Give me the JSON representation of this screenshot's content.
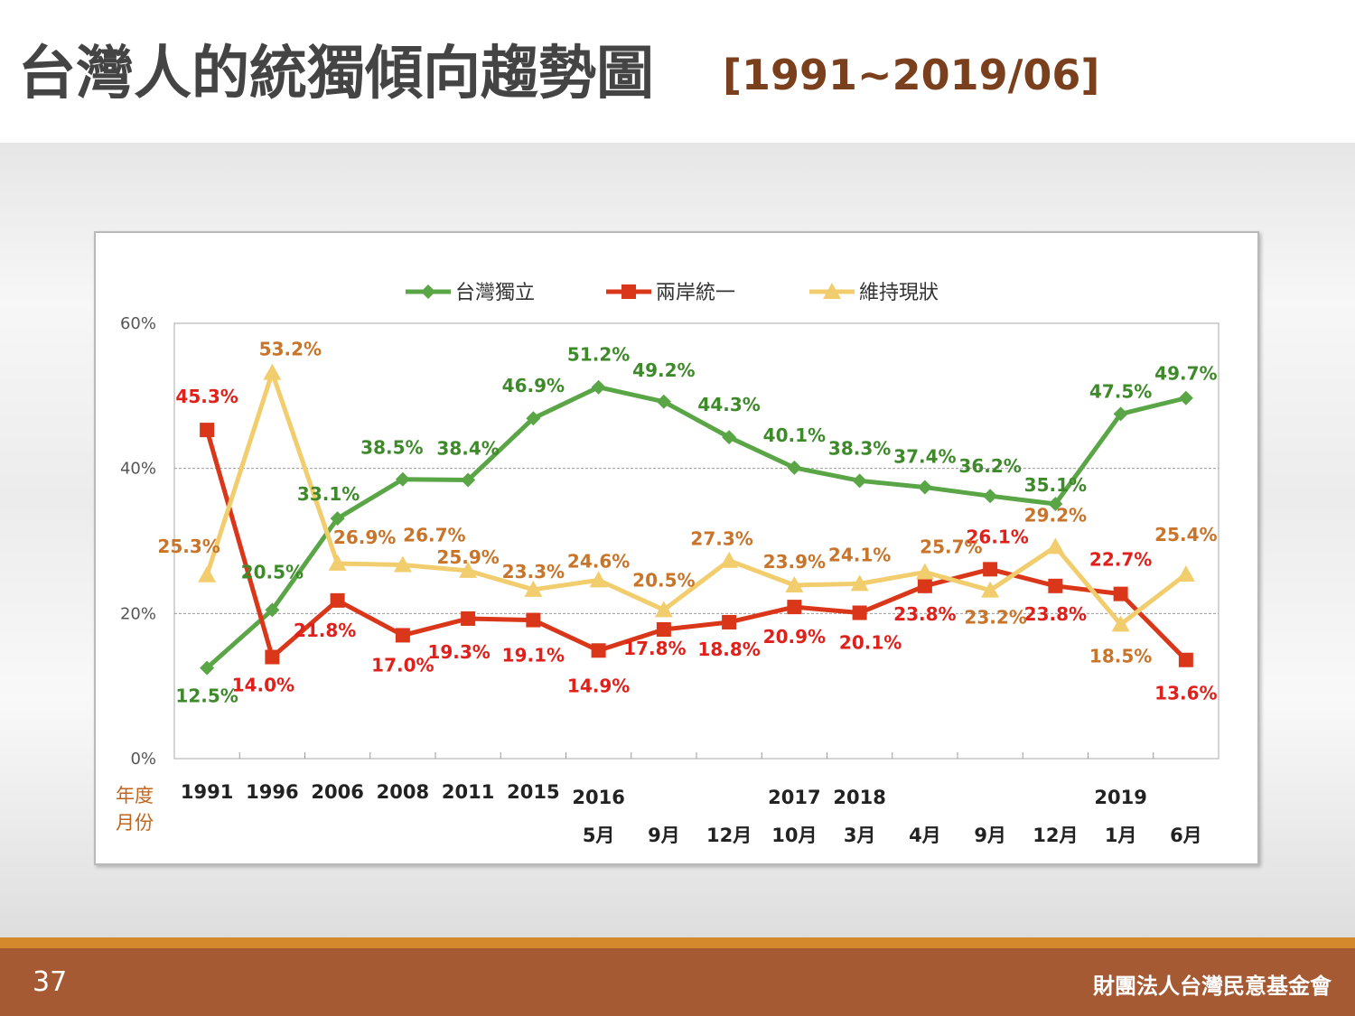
{
  "slide": {
    "title": "台灣人的統獨傾向趨勢圖",
    "title_range": "[1991~2019/06]",
    "page_number": "37",
    "organization": "財團法人台灣民意基金會"
  },
  "chart_data": {
    "type": "line",
    "row_label_year": "年度",
    "row_label_month": "月份",
    "categories": [
      {
        "year": "1991",
        "month": ""
      },
      {
        "year": "1996",
        "month": ""
      },
      {
        "year": "2006",
        "month": ""
      },
      {
        "year": "2008",
        "month": ""
      },
      {
        "year": "2011",
        "month": ""
      },
      {
        "year": "2015",
        "month": ""
      },
      {
        "year": "2016",
        "month": "5月"
      },
      {
        "year": "",
        "month": "9月"
      },
      {
        "year": "",
        "month": "12月"
      },
      {
        "year": "2017",
        "month": "10月"
      },
      {
        "year": "2018",
        "month": "3月"
      },
      {
        "year": "",
        "month": "4月"
      },
      {
        "year": "",
        "month": "9月"
      },
      {
        "year": "",
        "month": "12月"
      },
      {
        "year": "2019",
        "month": "1月"
      },
      {
        "year": "",
        "month": "6月"
      }
    ],
    "y_ticks": [
      "0%",
      "20%",
      "40%",
      "60%"
    ],
    "ylim": [
      0,
      60
    ],
    "grid": "horizontal dashed",
    "legend_position": "top",
    "series": [
      {
        "name": "台灣獨立",
        "color": "#5aa647",
        "label_color": "#3e8a2b",
        "marker": "diamond",
        "values": [
          12.5,
          20.5,
          33.1,
          38.5,
          38.4,
          46.9,
          51.2,
          49.2,
          44.3,
          40.1,
          38.3,
          37.4,
          36.2,
          35.1,
          47.5,
          49.7
        ],
        "labels": [
          "12.5%",
          "20.5%",
          "33.1%",
          "38.5%",
          "38.4%",
          "46.9%",
          "51.2%",
          "49.2%",
          "44.3%",
          "40.1%",
          "38.3%",
          "37.4%",
          "36.2%",
          "35.1%",
          "47.5%",
          "49.7%"
        ]
      },
      {
        "name": "兩岸統一",
        "color": "#d9361a",
        "label_color": "#e0201a",
        "marker": "square",
        "values": [
          45.3,
          14.0,
          21.8,
          17.0,
          19.3,
          19.1,
          14.9,
          17.8,
          18.8,
          20.9,
          20.1,
          23.8,
          26.1,
          23.8,
          22.7,
          13.6
        ],
        "labels": [
          "45.3%",
          "14.0%",
          "21.8%",
          "17.0%",
          "19.3%",
          "19.1%",
          "14.9%",
          "17.8%",
          "18.8%",
          "20.9%",
          "20.1%",
          "23.8%",
          "26.1%",
          "23.8%",
          "22.7%",
          "13.6%"
        ]
      },
      {
        "name": "維持現狀",
        "color": "#f2cd6e",
        "label_color": "#c8742a",
        "marker": "triangle",
        "values": [
          25.3,
          53.2,
          26.9,
          26.7,
          25.9,
          23.3,
          24.6,
          20.5,
          27.3,
          23.9,
          24.1,
          25.7,
          23.2,
          29.2,
          18.5,
          25.4
        ],
        "labels": [
          "25.3%",
          "53.2%",
          "26.9%",
          "26.7%",
          "25.9%",
          "23.3%",
          "24.6%",
          "20.5%",
          "27.3%",
          "23.9%",
          "24.1%",
          "25.7%",
          "23.2%",
          "29.2%",
          "18.5%",
          "25.4%"
        ]
      }
    ]
  }
}
